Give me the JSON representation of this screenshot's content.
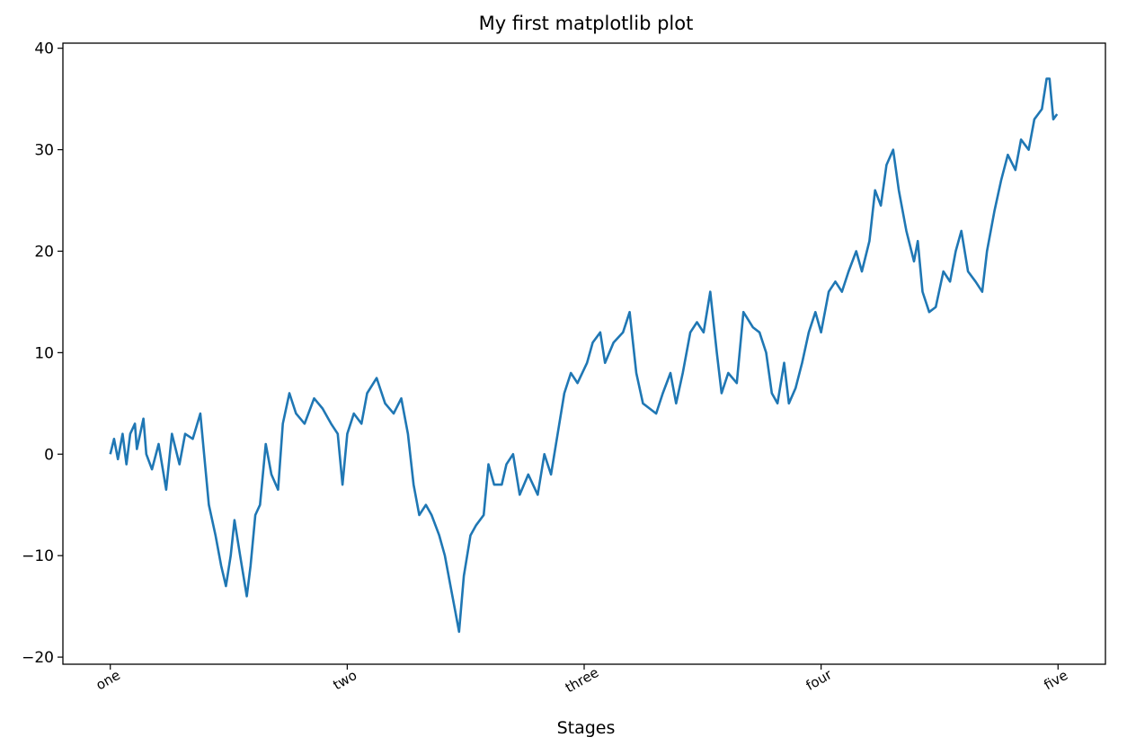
{
  "chart_data": {
    "type": "line",
    "title": "My first matplotlib plot",
    "xlabel": "Stages",
    "ylabel": "",
    "xlim": [
      -50,
      1050
    ],
    "ylim": [
      -20.7,
      40.5
    ],
    "xticks": [
      0,
      250,
      500,
      750,
      1000
    ],
    "xtick_labels": [
      "one",
      "two",
      "three",
      "four",
      "five"
    ],
    "yticks": [
      -20,
      -10,
      0,
      10,
      20,
      30,
      40
    ],
    "ytick_labels": [
      "−20",
      "−10",
      "0",
      "10",
      "20",
      "30",
      "40"
    ],
    "grid": false,
    "line_color": "#1f77b4",
    "series": [
      {
        "x": [
          0,
          4,
          8,
          13,
          17,
          21,
          26,
          28,
          35,
          38,
          44,
          51,
          59,
          65,
          73,
          79,
          87,
          95,
          99,
          104,
          111,
          117,
          122,
          127,
          131,
          137,
          144,
          148,
          153,
          158,
          164,
          170,
          177,
          182,
          189,
          196,
          205,
          215,
          224,
          233,
          240,
          245,
          250,
          257,
          265,
          271,
          281,
          290,
          299,
          307,
          314,
          320,
          326,
          333,
          339,
          347,
          353,
          359,
          364,
          368,
          373,
          380,
          386,
          394,
          399,
          405,
          413,
          418,
          425,
          432,
          441,
          451,
          458,
          465,
          472,
          479,
          486,
          493,
          503,
          509,
          517,
          522,
          531,
          541,
          548,
          555,
          562,
          569,
          576,
          583,
          591,
          597,
          604,
          612,
          619,
          626,
          633,
          640,
          645,
          652,
          661,
          668,
          678,
          685,
          692,
          698,
          704,
          711,
          716,
          723,
          730,
          737,
          744,
          750,
          758,
          765,
          772,
          779,
          787,
          793,
          801,
          807,
          813,
          819,
          826,
          832,
          840,
          848,
          852,
          857,
          864,
          871,
          879,
          886,
          892,
          898,
          905,
          913,
          920,
          925,
          933,
          940,
          947,
          955,
          961,
          969,
          975,
          983,
          988,
          991,
          995,
          999
        ],
        "y": [
          0,
          1.5,
          -0.5,
          2,
          -1,
          2,
          3,
          0.5,
          3.5,
          0,
          -1.5,
          1,
          -3.5,
          2,
          -1,
          2,
          1.5,
          4,
          0,
          -5,
          -8,
          -11,
          -13,
          -10,
          -6.5,
          -10,
          -14,
          -11,
          -6,
          -5,
          1,
          -2,
          -3.5,
          3,
          6,
          4,
          3,
          5.5,
          4.5,
          3,
          2,
          -3,
          2,
          4,
          3,
          6,
          7.5,
          5,
          4,
          5.5,
          2,
          -3,
          -6,
          -5,
          -6,
          -8,
          -10,
          -13,
          -15.5,
          -17.5,
          -12,
          -8,
          -7,
          -6,
          -1,
          -3,
          -3,
          -1,
          0,
          -4,
          -2,
          -4,
          0,
          -2,
          2,
          6,
          8,
          7,
          9,
          11,
          12,
          9,
          11,
          12,
          14,
          8,
          5,
          4.5,
          4,
          6,
          8,
          5,
          8,
          12,
          13,
          12,
          16,
          10,
          6,
          8,
          7,
          14,
          12.5,
          12,
          10,
          6,
          5,
          9,
          5,
          6.5,
          9,
          12,
          14,
          12,
          16,
          17,
          16,
          18,
          20,
          18,
          21,
          26,
          24.5,
          28.5,
          30,
          26,
          22,
          19,
          21,
          16,
          14,
          14.5,
          18,
          17,
          20,
          22,
          18,
          17,
          16,
          20,
          24,
          27,
          29.5,
          28,
          31,
          30,
          33,
          34,
          37,
          37,
          33,
          33.5
        ]
      }
    ]
  }
}
